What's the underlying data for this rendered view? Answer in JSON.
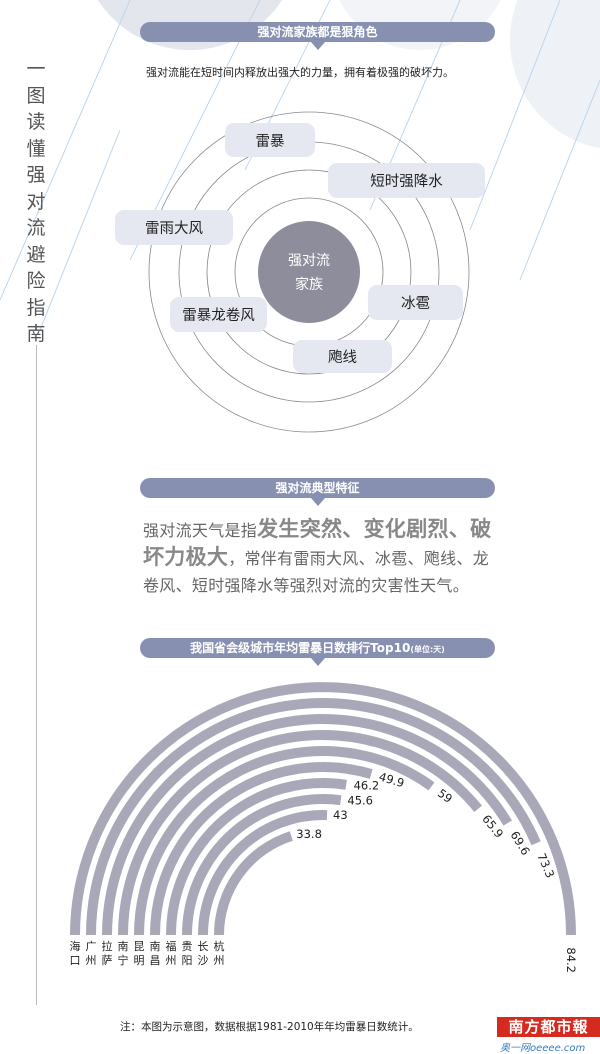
{
  "side_title": [
    "一",
    "图",
    "读",
    "懂",
    "强",
    "对",
    "流",
    "避",
    "险",
    "指",
    "南"
  ],
  "section1": {
    "title": "强对流家族都是狠角色",
    "subtitle": "强对流能在短时间内释放出强大的力量，拥有着极强的破坏力。",
    "center": [
      "强对流",
      "家族"
    ],
    "members": [
      "雷暴",
      "短时强降水",
      "雷雨大风",
      "冰雹",
      "雷暴龙卷风",
      "飑线"
    ]
  },
  "section2": {
    "title": "强对流典型特征",
    "text_pre": "强对流天气是指",
    "text_bold": "发生突然、变化剧烈、破坏力极大",
    "text_post": "，常伴有雷雨大风、冰雹、飑线、龙卷风、短时强降水等强烈对流的灾害性天气。"
  },
  "section3": {
    "title": "我国省会级城市年均雷暴日数排行Top10",
    "unit": "(单位:天)"
  },
  "chart_data": {
    "type": "radial-bar",
    "title": "我国省会级城市年均雷暴日数排行Top10",
    "unit": "天",
    "categories": [
      "海口",
      "广州",
      "拉萨",
      "南宁",
      "昆明",
      "南昌",
      "福州",
      "贵阳",
      "长沙",
      "杭州"
    ],
    "values": [
      84.2,
      73.3,
      69.6,
      65.9,
      59,
      49.9,
      46.2,
      45.6,
      43,
      33.8
    ],
    "labels": [
      "84.2",
      "73.3",
      "69.6",
      "65.9",
      "59",
      "49.9",
      "46.2",
      "45.6",
      "43",
      "33.8"
    ],
    "bar_color": "#a9a8b8"
  },
  "footer": {
    "note": "注：本图为示意图，数据根据1981-2010年年均雷暴日数统计。",
    "logo": "南方都市報",
    "logo_sub": "奥一网oeeee.com"
  },
  "colors": {
    "pill": "#8890b2",
    "tag": "#e6e8f1",
    "center": "#8e8d9b",
    "logo": "#d42a1f"
  }
}
